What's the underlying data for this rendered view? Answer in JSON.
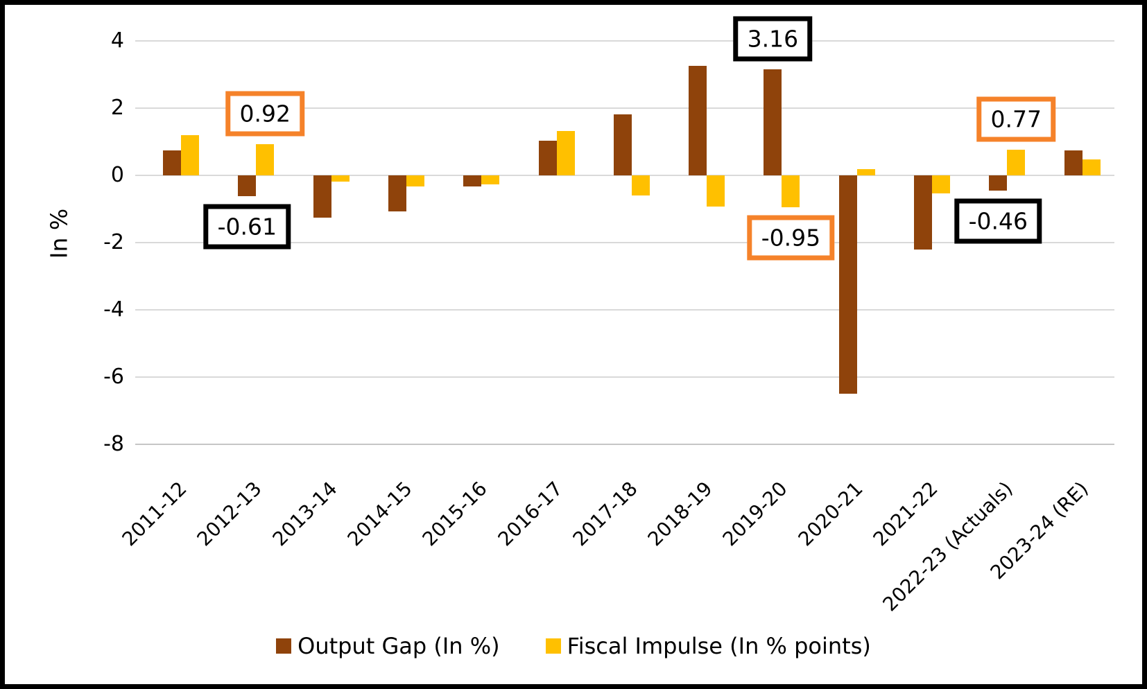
{
  "chart_data": {
    "type": "bar",
    "title": "",
    "ylabel": "In %",
    "ylim": [
      -8,
      4
    ],
    "yticks": [
      4,
      2,
      0,
      -2,
      -4,
      -6,
      -8
    ],
    "grid": true,
    "legend_position": "bottom",
    "categories": [
      "2011-12",
      "2012-13",
      "2013-14",
      "2014-15",
      "2015-16",
      "2016-17",
      "2017-18",
      "2018-19",
      "2019-20",
      "2020-21",
      "2021-22",
      "2022-23 (Actuals)",
      "2023-24 (RE)"
    ],
    "series": [
      {
        "name": "Output Gap (In %)",
        "color": "#8F430B",
        "values": [
          0.74,
          -0.61,
          -1.26,
          -1.07,
          -0.32,
          1.03,
          1.82,
          3.25,
          3.16,
          -6.5,
          -2.2,
          -0.46,
          0.74
        ]
      },
      {
        "name": "Fiscal Impulse (In % points)",
        "color": "#FFC000",
        "values": [
          1.2,
          0.92,
          -0.19,
          -0.34,
          -0.27,
          1.32,
          -0.6,
          -0.93,
          -0.95,
          0.19,
          -0.54,
          0.77,
          0.48
        ]
      }
    ],
    "callouts": [
      {
        "text": "0.92",
        "series_index": 1,
        "category_index": 1,
        "position": "above",
        "border_color": "#F5822A"
      },
      {
        "text": "-0.61",
        "series_index": 0,
        "category_index": 1,
        "position": "below",
        "border_color": "#000000"
      },
      {
        "text": "3.16",
        "series_index": 0,
        "category_index": 8,
        "position": "above",
        "border_color": "#000000"
      },
      {
        "text": "-0.95",
        "series_index": 1,
        "category_index": 8,
        "position": "below",
        "border_color": "#F5822A"
      },
      {
        "text": "0.77",
        "series_index": 1,
        "category_index": 11,
        "position": "above",
        "border_color": "#F5822A"
      },
      {
        "text": "-0.46",
        "series_index": 0,
        "category_index": 11,
        "position": "below",
        "border_color": "#000000"
      }
    ]
  },
  "colors": {
    "grid": "#D9D9D9",
    "axis_line": "#C6C6C6",
    "text": "#000000",
    "frame": "#000000",
    "background": "#FFFFFF"
  }
}
